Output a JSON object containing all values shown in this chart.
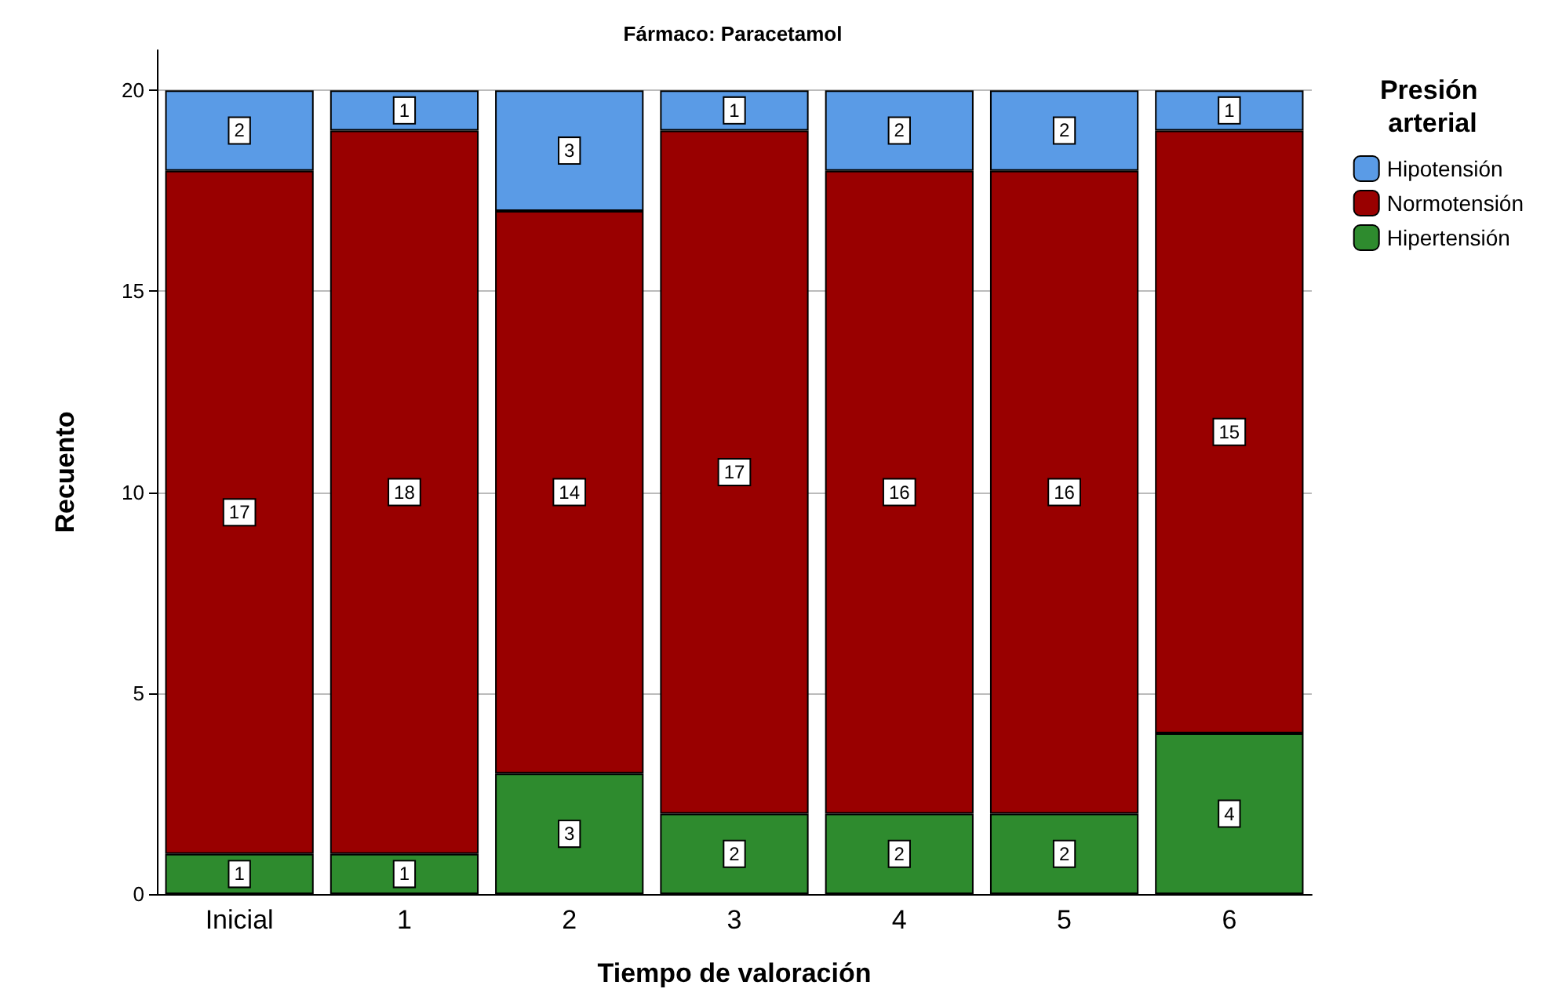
{
  "chart_data": {
    "type": "bar",
    "title": "Fármaco: Paracetamol",
    "xlabel": "Tiempo de valoración",
    "ylabel": "Recuento",
    "legend_title": "Presión arterial",
    "categories": [
      "Inicial",
      "1",
      "2",
      "3",
      "4",
      "5",
      "6"
    ],
    "stacked": true,
    "series": [
      {
        "name": "Hipertensión",
        "color": "#2e8b2e",
        "values": [
          1,
          1,
          3,
          2,
          2,
          2,
          4
        ]
      },
      {
        "name": "Normotensión",
        "color": "#990000",
        "values": [
          17,
          18,
          14,
          17,
          16,
          16,
          15
        ]
      },
      {
        "name": "Hipotensión",
        "color": "#5a9be6",
        "values": [
          2,
          1,
          3,
          1,
          2,
          2,
          1
        ]
      }
    ],
    "ylim": [
      0,
      21
    ],
    "yticks": [
      0,
      5,
      10,
      15,
      20
    ],
    "grid": "y",
    "legend": "top right",
    "data_labels": true
  }
}
